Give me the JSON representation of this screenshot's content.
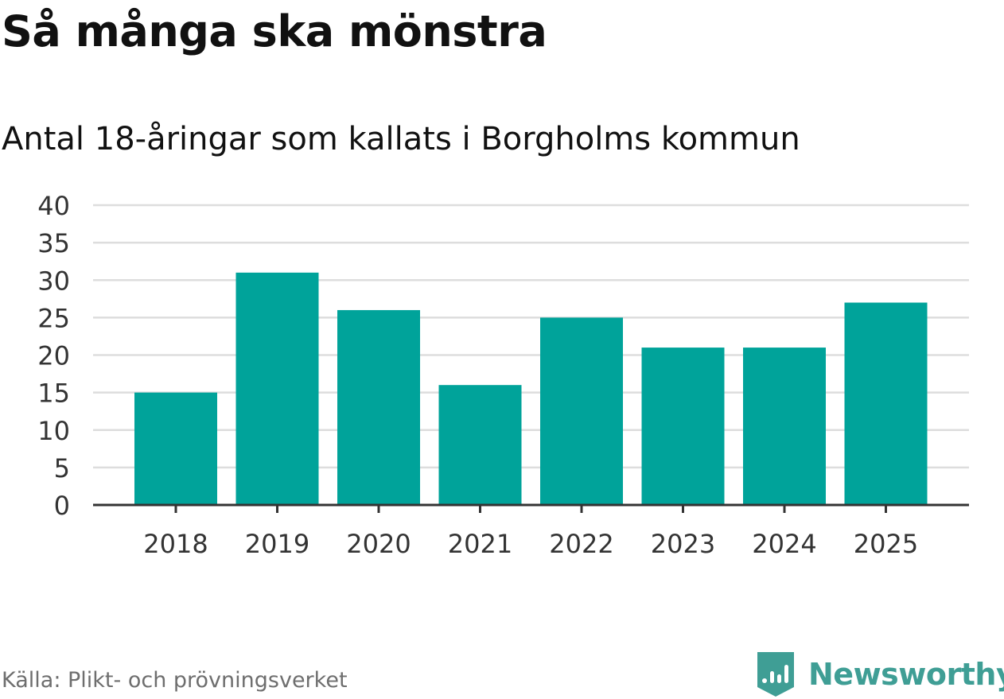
{
  "header": {
    "title": "Så många ska mönstra",
    "subtitle": "Antal 18-åringar som kallats i Borgholms kommun"
  },
  "footer": {
    "source": "Källa: Plikt- och prövningsverket",
    "brand": "Newsworthy"
  },
  "colors": {
    "bar": "#00a39a",
    "brand": "#3f9e95",
    "grid": "#dddddd",
    "axis": "#333333"
  },
  "chart_data": {
    "type": "bar",
    "categories": [
      "2018",
      "2019",
      "2020",
      "2021",
      "2022",
      "2023",
      "2024",
      "2025"
    ],
    "values": [
      15,
      31,
      26,
      16,
      25,
      21,
      21,
      27
    ],
    "title": "Så många ska mönstra",
    "subtitle": "Antal 18-åringar som kallats i Borgholms kommun",
    "ylim": [
      0,
      40
    ],
    "yticks": [
      0,
      5,
      10,
      15,
      20,
      25,
      30,
      35,
      40
    ],
    "grid": true
  }
}
